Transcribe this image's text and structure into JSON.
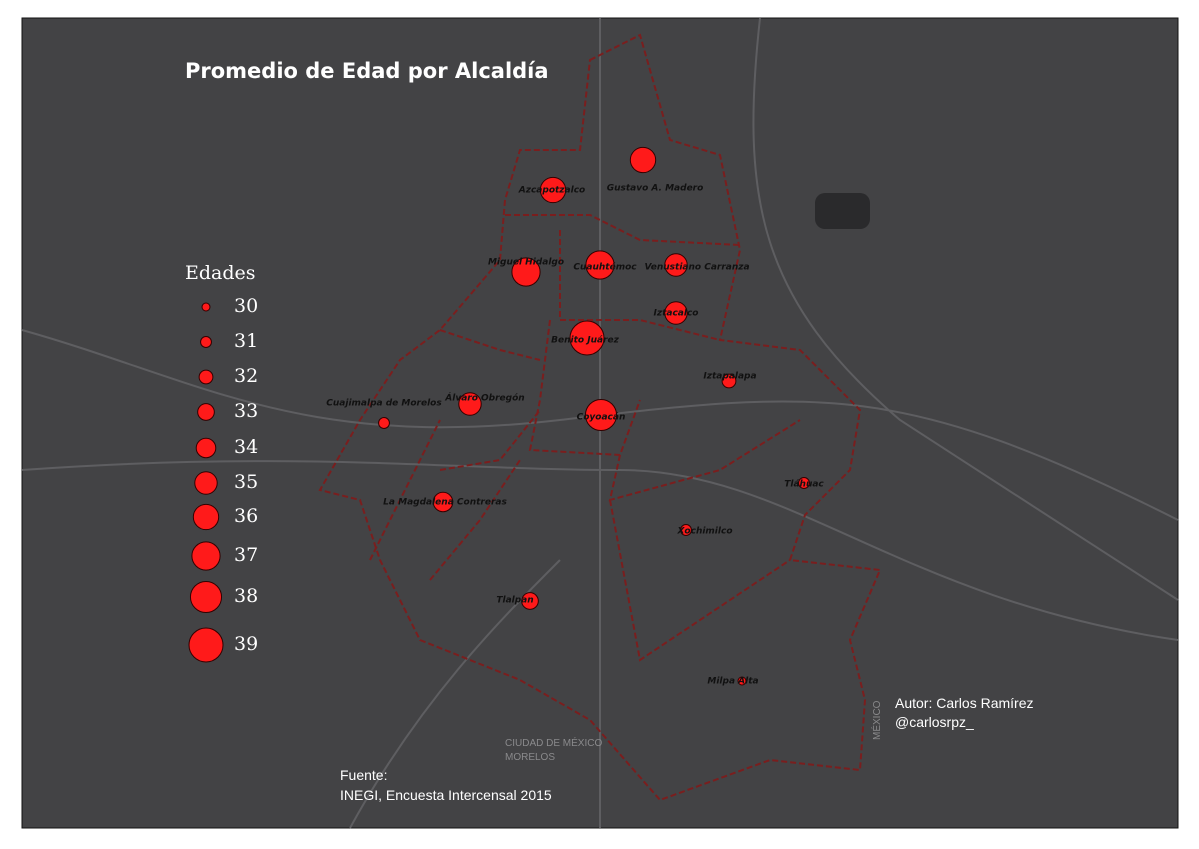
{
  "title": "Promedio de Edad por Alcaldía",
  "legend": {
    "title": "Edades",
    "items": [
      30,
      31,
      32,
      33,
      34,
      35,
      36,
      37,
      38,
      39
    ]
  },
  "alcaldias": [
    {
      "name": "Gustavo A. Madero",
      "value": 36
    },
    {
      "name": "Azcapotzalco",
      "value": 36
    },
    {
      "name": "Miguel Hidalgo",
      "value": 37
    },
    {
      "name": "Cuauhtémoc",
      "value": 37
    },
    {
      "name": "Venustiano Carranza",
      "value": 35
    },
    {
      "name": "Iztacalco",
      "value": 35
    },
    {
      "name": "Benito Juárez",
      "value": 39
    },
    {
      "name": "Iztapalapa",
      "value": 32
    },
    {
      "name": "Coyoacán",
      "value": 38
    },
    {
      "name": "Álvaro Obregón",
      "value": 35
    },
    {
      "name": "Cuajimalpa de Morelos",
      "value": 31
    },
    {
      "name": "La Magdalena Contreras",
      "value": 34
    },
    {
      "name": "Tláhuac",
      "value": 31
    },
    {
      "name": "Xochimilco",
      "value": 31
    },
    {
      "name": "Tlalpan",
      "value": 33
    },
    {
      "name": "Milpa Alta",
      "value": 30
    }
  ],
  "author": [
    "Autor: Carlos Ramírez",
    "@carlosrpz_"
  ],
  "source": [
    "Fuente:",
    "INEGI, Encuesta Intercensal 2015"
  ],
  "basemap_labels": [
    "CIUDAD DE MÉXICO",
    "MORELOS",
    "MÉXICO"
  ]
}
